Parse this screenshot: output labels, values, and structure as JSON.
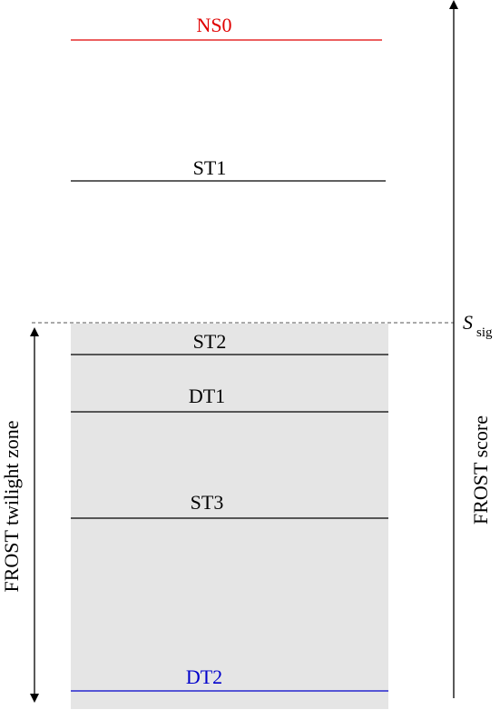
{
  "diagram": {
    "levels": [
      {
        "id": "ns0",
        "label": "NS0",
        "color": "#e00000"
      },
      {
        "id": "st1",
        "label": "ST1",
        "color": "#000000"
      },
      {
        "id": "st2",
        "label": "ST2",
        "color": "#000000"
      },
      {
        "id": "dt1",
        "label": "DT1",
        "color": "#000000"
      },
      {
        "id": "st3",
        "label": "ST3",
        "color": "#000000"
      },
      {
        "id": "dt2",
        "label": "DT2",
        "color": "#0000cc"
      }
    ],
    "threshold": {
      "symbol": "S",
      "subscript": "sig"
    },
    "axis_label": "FROST score",
    "zone_label": "FROST twilight zone",
    "zone_fill": "#e5e5e5"
  }
}
